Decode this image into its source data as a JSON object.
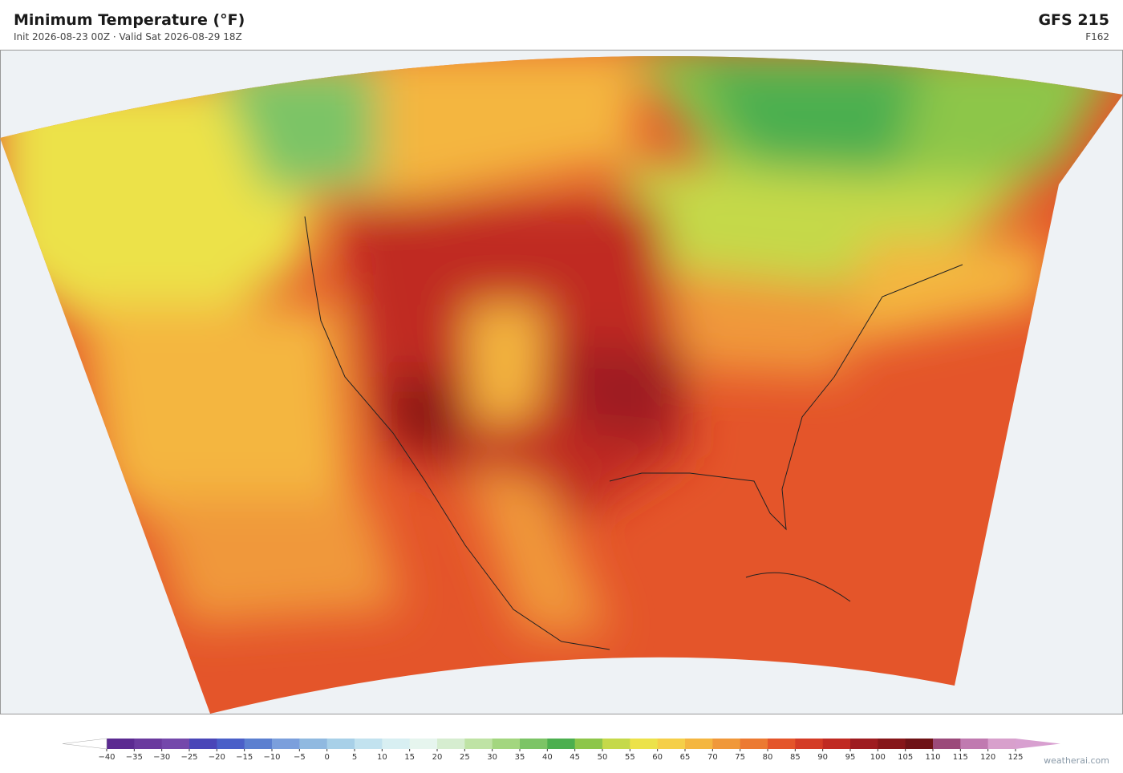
{
  "header": {
    "title": "Minimum Temperature  (°F)",
    "subtitle": "Init 2026-08-23 00Z  ·  Valid Sat 2026-08-29 18Z",
    "model": "GFS  215",
    "forecast_hour": "F162"
  },
  "colorbar": {
    "ticks": [
      {
        "value": -40,
        "label": "−40"
      },
      {
        "value": -35,
        "label": "−35"
      },
      {
        "value": -30,
        "label": "−30"
      },
      {
        "value": -25,
        "label": "−25"
      },
      {
        "value": -20,
        "label": "−20"
      },
      {
        "value": -15,
        "label": "−15"
      },
      {
        "value": -10,
        "label": "−10"
      },
      {
        "value": -5,
        "label": "−5"
      },
      0,
      5,
      10,
      15,
      20,
      25,
      30,
      35,
      40,
      45,
      50,
      55,
      60,
      65,
      70,
      75,
      80,
      85,
      90,
      95,
      100,
      105,
      110,
      115,
      120,
      125
    ],
    "colors": [
      "#5b2a91",
      "#6a3a9e",
      "#7448ab",
      "#4a46b8",
      "#4a5fc8",
      "#5b7fd0",
      "#7b9fdc",
      "#90b9e0",
      "#a8d0e8",
      "#c2e2ef",
      "#d8eff2",
      "#e6f5ee",
      "#d6edd0",
      "#bfe3a5",
      "#a3d67f",
      "#7cc466",
      "#4caf4f",
      "#8dc64a",
      "#c5d94a",
      "#ece24a",
      "#f5cf48",
      "#f4b640",
      "#f0983a",
      "#ec7a32",
      "#e4552a",
      "#d43c26",
      "#c02a22",
      "#9e1c20",
      "#861619",
      "#6e1216",
      "#9b4a7a",
      "#c07ab0",
      "#d8a0cc"
    ],
    "under_color": "#ffffff",
    "over_color": "#d8a0d0"
  },
  "credit": "weatherai.com"
}
